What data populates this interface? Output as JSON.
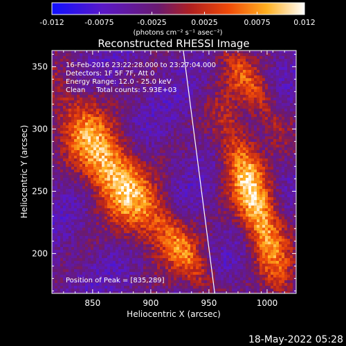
{
  "chart_data": {
    "type": "heatmap",
    "title": "Reconstructed RHESSI Image",
    "xlabel": "Heliocentric X (arcsec)",
    "ylabel": "Heliocentric Y (arcsec)",
    "xlim": [
      815,
      1025
    ],
    "ylim": [
      168,
      363
    ],
    "x_ticks": [
      850,
      900,
      950,
      1000
    ],
    "y_ticks": [
      200,
      250,
      300,
      350
    ],
    "colorbar": {
      "ticks": [
        "-0.012",
        "-0.0075",
        "-0.0025",
        "0.0025",
        "0.0075",
        "0.012"
      ],
      "tick_values": [
        -0.012,
        -0.0075,
        -0.0025,
        0.0025,
        0.0075,
        0.012
      ],
      "range": [
        -0.012,
        0.012
      ],
      "unit_text": "(photons cm⁻² s⁻¹ asec⁻²)",
      "colors": [
        "#1010ff",
        "#6a1a9a",
        "#8a1e3a",
        "#d83010",
        "#ff8a00",
        "#ffffff"
      ]
    },
    "annotations": [
      "16-Feb-2016 23:22:28.000 to 23:27:04.000",
      "Detectors: 1F 5F 7F, Att 0",
      "Energy Range: 12.0 - 25.0 keV",
      "Clean     Total counts: 5.93E+03"
    ],
    "peak_label": "Position of Peak = [835,289]",
    "peak": [
      835,
      289
    ],
    "limb": [
      [
        928,
        363
      ],
      [
        955,
        168
      ]
    ],
    "bright_regions": [
      {
        "center": [
          865,
          268
        ],
        "angle_deg": -55,
        "length": 110,
        "width": 32,
        "level": 0.011
      },
      {
        "center": [
          990,
          240
        ],
        "angle_deg": -70,
        "length": 110,
        "width": 24,
        "level": 0.011
      },
      {
        "center": [
          930,
          200
        ],
        "angle_deg": -55,
        "length": 70,
        "width": 20,
        "level": 0.004
      },
      {
        "center": [
          985,
          335
        ],
        "angle_deg": -55,
        "length": 80,
        "width": 20,
        "level": 0.004
      }
    ]
  },
  "timestamp": "18-May-2022 05:28"
}
